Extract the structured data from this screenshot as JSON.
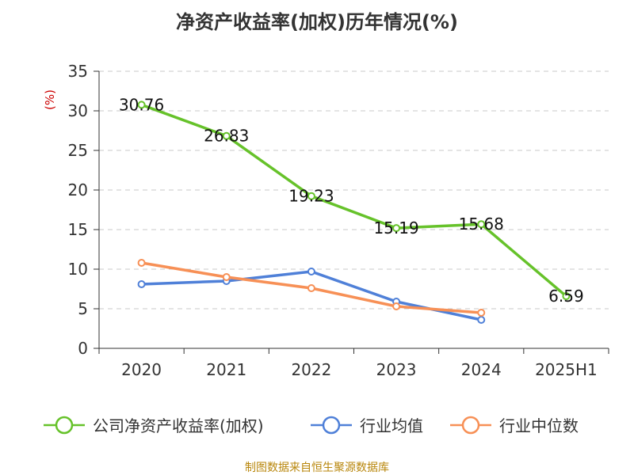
{
  "title": "净资产收益率(加权)历年情况(%)",
  "source": "制图数据来自恒生聚源数据库",
  "chart_data": {
    "type": "line",
    "title": "净资产收益率(加权)历年情况(%)",
    "ylabel": "(%)",
    "xlabel": "",
    "categories": [
      "2020",
      "2021",
      "2022",
      "2023",
      "2024",
      "2025H1"
    ],
    "ylim": [
      0,
      35
    ],
    "yticks": [
      0,
      5,
      10,
      15,
      20,
      25,
      30,
      35
    ],
    "grid": true,
    "legend_position": "bottom",
    "series": [
      {
        "name": "公司净资产收益率(加权)",
        "color": "#66c22a",
        "values": [
          30.76,
          26.83,
          19.23,
          15.19,
          15.68,
          6.59
        ],
        "labels": [
          "30.76",
          "26.83",
          "19.23",
          "15.19",
          "15.68",
          "6.59"
        ]
      },
      {
        "name": "行业均值",
        "color": "#4f80d8",
        "values": [
          8.1,
          8.5,
          9.7,
          5.9,
          3.6,
          null
        ]
      },
      {
        "name": "行业中位数",
        "color": "#f79056",
        "values": [
          10.8,
          9.0,
          7.6,
          5.3,
          4.5,
          null
        ]
      }
    ]
  }
}
